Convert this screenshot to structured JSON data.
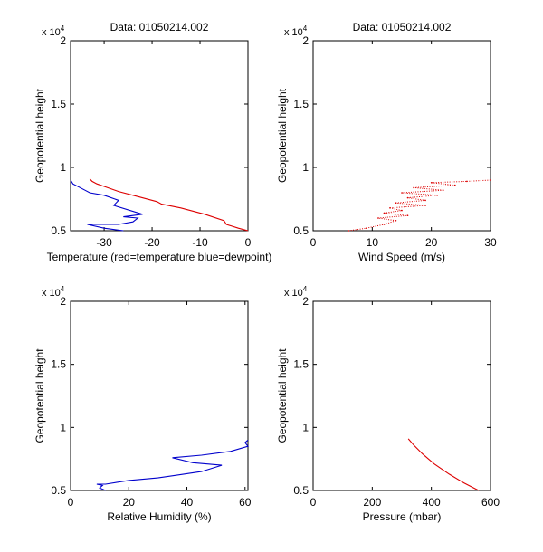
{
  "colors": {
    "temperature": "#dd0000",
    "dewpoint": "#0000cc",
    "axis": "#000000"
  },
  "chart_data": [
    {
      "type": "line",
      "panel": "top-left",
      "title": "Data: 01050214.002",
      "xlabel": "Temperature (red=temperature blue=dewpoint)",
      "ylabel": "Geopotential height",
      "y_multiplier": {
        "base": "x 10",
        "exp": "4"
      },
      "xlim": [
        -37,
        0
      ],
      "ylim": [
        0.5,
        2.0
      ],
      "xticks": [
        -30,
        -20,
        -10,
        0
      ],
      "xtick_labels": [
        "-30",
        "-20",
        "-10",
        "0"
      ],
      "yticks": [
        0.5,
        1.0,
        1.5,
        2.0
      ],
      "ytick_labels": [
        "0.5",
        "1",
        "1.5",
        "2"
      ],
      "series": [
        {
          "name": "temperature",
          "color": "#dd0000",
          "x": [
            0,
            -2,
            -4.5,
            -5,
            -9,
            -14,
            -18,
            -19,
            -23,
            -27,
            -30,
            -31.5,
            -32.5,
            -33
          ],
          "y": [
            0.5,
            0.52,
            0.55,
            0.58,
            0.63,
            0.68,
            0.71,
            0.73,
            0.77,
            0.81,
            0.85,
            0.87,
            0.89,
            0.91
          ]
        },
        {
          "name": "dewpoint",
          "color": "#0000cc",
          "x": [
            -26,
            -30,
            -33.5,
            -27,
            -24,
            -23,
            -26,
            -22,
            -28,
            -27,
            -30,
            -33,
            -34,
            -36.5,
            -37
          ],
          "y": [
            0.5,
            0.52,
            0.55,
            0.55,
            0.57,
            0.6,
            0.61,
            0.63,
            0.7,
            0.74,
            0.78,
            0.8,
            0.82,
            0.87,
            0.9
          ]
        }
      ]
    },
    {
      "type": "scatter",
      "panel": "top-right",
      "title": "Data: 01050214.002",
      "xlabel": "Wind Speed (m/s)",
      "ylabel": "Geopotential height",
      "y_multiplier": {
        "base": "x 10",
        "exp": "4"
      },
      "xlim": [
        0,
        30
      ],
      "ylim": [
        0.5,
        2.0
      ],
      "xticks": [
        0,
        10,
        20,
        30
      ],
      "xtick_labels": [
        "0",
        "10",
        "20",
        "30"
      ],
      "yticks": [
        0.5,
        1.0,
        1.5,
        2.0
      ],
      "ytick_labels": [
        "0.5",
        "1",
        "1.5",
        "2"
      ],
      "series": [
        {
          "name": "wind speed",
          "color": "#dd0000",
          "x": [
            6,
            9,
            12,
            14,
            11,
            16,
            12,
            15,
            13,
            19,
            14,
            19,
            16,
            21,
            15,
            22,
            17,
            24,
            20,
            26,
            30
          ],
          "y": [
            0.5,
            0.52,
            0.55,
            0.58,
            0.6,
            0.62,
            0.64,
            0.66,
            0.68,
            0.7,
            0.72,
            0.74,
            0.76,
            0.78,
            0.8,
            0.82,
            0.84,
            0.86,
            0.88,
            0.89,
            0.9
          ]
        }
      ]
    },
    {
      "type": "line",
      "panel": "bottom-left",
      "title": "",
      "xlabel": "Relative Humidity (%)",
      "ylabel": "Geopotential height",
      "y_multiplier": {
        "base": "x 10",
        "exp": "4"
      },
      "xlim": [
        0,
        61
      ],
      "ylim": [
        0.5,
        2.0
      ],
      "xticks": [
        0,
        20,
        40,
        60
      ],
      "xtick_labels": [
        "0",
        "20",
        "40",
        "60"
      ],
      "yticks": [
        0.5,
        1.0,
        1.5,
        2.0
      ],
      "ytick_labels": [
        "0.5",
        "1",
        "1.5",
        "2"
      ],
      "series": [
        {
          "name": "relative humidity",
          "color": "#0000cc",
          "x": [
            12,
            10,
            11,
            9,
            12,
            20,
            30,
            36,
            45,
            52,
            42,
            35,
            45,
            55,
            61,
            60,
            61
          ],
          "y": [
            0.5,
            0.52,
            0.54,
            0.55,
            0.55,
            0.58,
            0.6,
            0.62,
            0.65,
            0.7,
            0.72,
            0.76,
            0.78,
            0.81,
            0.85,
            0.88,
            0.9
          ]
        }
      ]
    },
    {
      "type": "line",
      "panel": "bottom-right",
      "title": "",
      "xlabel": "Pressure (mbar)",
      "ylabel": "Geopotential height",
      "y_multiplier": {
        "base": "x 10",
        "exp": "4"
      },
      "xlim": [
        0,
        600
      ],
      "ylim": [
        0.5,
        2.0
      ],
      "xticks": [
        0,
        200,
        400,
        600
      ],
      "xtick_labels": [
        "0",
        "200",
        "400",
        "600"
      ],
      "yticks": [
        0.5,
        1.0,
        1.5,
        2.0
      ],
      "ytick_labels": [
        "0.5",
        "1",
        "1.5",
        "2"
      ],
      "series": [
        {
          "name": "pressure",
          "color": "#dd0000",
          "x": [
            560,
            510,
            460,
            410,
            370,
            340,
            322
          ],
          "y": [
            0.5,
            0.56,
            0.63,
            0.71,
            0.79,
            0.86,
            0.91
          ]
        }
      ]
    }
  ]
}
